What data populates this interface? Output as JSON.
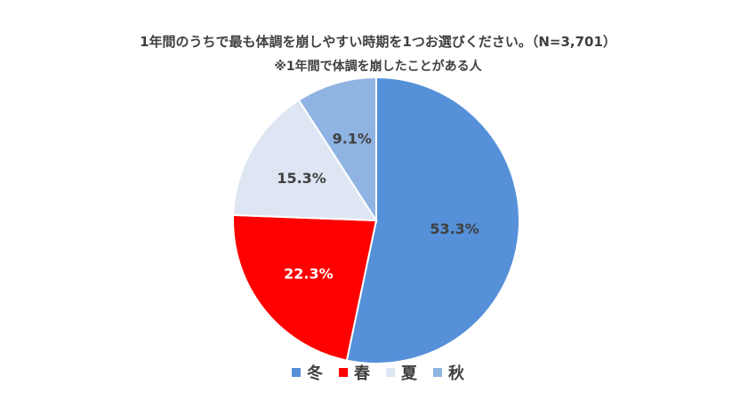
{
  "chart_data": {
    "type": "pie",
    "title": "1年間のうちで最も体調を崩しやすい時期を1つお選びください。（N=3,701）",
    "subtitle": "※1年間で体調を崩したことがある人",
    "categories": [
      "冬",
      "春",
      "夏",
      "秋"
    ],
    "values": [
      53.3,
      22.3,
      15.3,
      9.1
    ],
    "labels": [
      "53.3%",
      "22.3%",
      "15.3%",
      "9.1%"
    ],
    "colors": [
      "#5590D9",
      "#FF0000",
      "#DDE6F2",
      "#8FB4E3"
    ],
    "start": "12 o'clock, clockwise",
    "legend_position": "bottom"
  }
}
